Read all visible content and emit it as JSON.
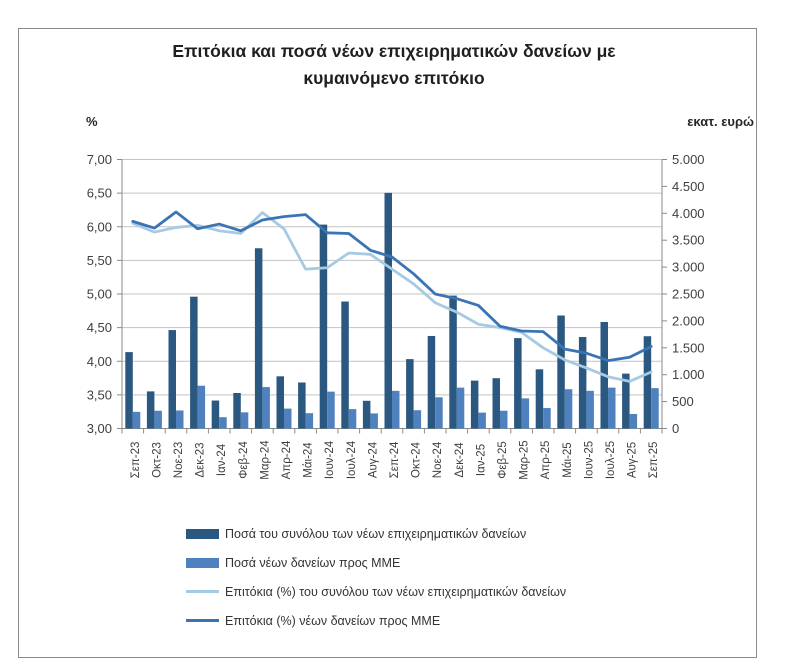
{
  "title": {
    "line1": "Επιτόκια και ποσά νέων επιχειρηματικών δανείων με",
    "line2": "κυμαινόμενο επιτόκιο"
  },
  "axes": {
    "left_unit_label": "%",
    "right_unit_label": "εκατ. ευρώ",
    "left_tick_labels": [
      "7,00",
      "6,50",
      "6,00",
      "5,50",
      "5,00",
      "4,50",
      "4,00",
      "3,50",
      "3,00"
    ],
    "right_tick_labels": [
      "5.000",
      "4.500",
      "4.000",
      "3.500",
      "3.000",
      "2.500",
      "2.000",
      "1.500",
      "1.000",
      "500",
      "0"
    ]
  },
  "colors": {
    "bar_total": "#2B5880",
    "bar_sme": "#4E81BD",
    "line_total": "#A6CAE2",
    "line_sme": "#3B74B5",
    "grid": "#C3C3C3",
    "axis": "#8a8a8a",
    "tick_text": "#3F3F3F"
  },
  "legend": {
    "items": [
      {
        "label": "Ποσά του συνόλου των νέων επιχειρηματικών δανείων",
        "swatch": "bar",
        "color": "#2B5880"
      },
      {
        "label": "Ποσά νέων δανείων προς ΜΜΕ",
        "swatch": "bar",
        "color": "#4E81BD"
      },
      {
        "label": "Επιτόκια (%) του συνόλου των νέων επιχειρηματικών δανείων",
        "swatch": "line",
        "color": "#A6CAE2"
      },
      {
        "label": "Επιτόκια (%) νέων δανείων προς ΜΜΕ",
        "swatch": "line",
        "color": "#3B74B5"
      }
    ]
  },
  "chart_data": {
    "type": "combo-bar-line",
    "categories": [
      "Σεπ-23",
      "Οκτ-23",
      "Νοε-23",
      "Δεκ-23",
      "Ιαν-24",
      "Φεβ-24",
      "Μαρ-24",
      "Απρ-24",
      "Μάι-24",
      "Ιουν-24",
      "Ιουλ-24",
      "Αυγ-24",
      "Σεπ-24",
      "Οκτ-24",
      "Νοε-24",
      "Δεκ-24",
      "Ιαν-25",
      "Φεβ-25",
      "Μαρ-25",
      "Απρ-25",
      "Μάι-25",
      "Ιουν-25",
      "Ιουλ-25",
      "Αυγ-25",
      "Σεπ-25"
    ],
    "left_axis": {
      "label": "%",
      "min": 3.0,
      "max": 7.0,
      "step": 0.5
    },
    "right_axis": {
      "label": "εκατ. ευρώ",
      "min": 0,
      "max": 5000,
      "step": 500
    },
    "grid": true,
    "legend_position": "bottom-left",
    "series": [
      {
        "name": "Ποσά του συνόλου των νέων επιχειρηματικών δανείων",
        "type": "bar",
        "axis": "right",
        "color": "#2B5880",
        "values": [
          1420,
          690,
          1830,
          2450,
          520,
          660,
          3350,
          970,
          855,
          3790,
          2360,
          515,
          4380,
          1290,
          1720,
          2470,
          890,
          935,
          1680,
          1100,
          2100,
          1700,
          1980,
          1020,
          1715
        ]
      },
      {
        "name": "Ποσά νέων δανείων προς ΜΜΕ",
        "type": "bar",
        "axis": "right",
        "color": "#4E81BD",
        "values": [
          310,
          330,
          335,
          795,
          210,
          300,
          770,
          370,
          285,
          685,
          360,
          280,
          700,
          340,
          580,
          760,
          295,
          330,
          560,
          380,
          730,
          700,
          760,
          270,
          750
        ]
      },
      {
        "name": "Επιτόκια (%) του συνόλου των νέων επιχειρηματικών δανείων",
        "type": "line",
        "axis": "left",
        "color": "#A6CAE2",
        "values": [
          6.05,
          5.92,
          5.99,
          6.02,
          5.94,
          5.9,
          6.21,
          5.97,
          5.37,
          5.39,
          5.61,
          5.59,
          5.37,
          5.15,
          4.87,
          4.73,
          4.55,
          4.5,
          4.43,
          4.2,
          4.02,
          3.9,
          3.77,
          3.7,
          3.84
        ]
      },
      {
        "name": "Επιτόκια (%) νέων δανείων προς ΜΜΕ",
        "type": "line",
        "axis": "left",
        "color": "#3B74B5",
        "values": [
          6.08,
          5.98,
          6.22,
          5.97,
          6.04,
          5.94,
          6.1,
          6.15,
          6.18,
          5.91,
          5.9,
          5.65,
          5.55,
          5.3,
          5.0,
          4.93,
          4.83,
          4.52,
          4.45,
          4.44,
          4.18,
          4.12,
          4.01,
          4.06,
          4.22
        ]
      }
    ]
  }
}
